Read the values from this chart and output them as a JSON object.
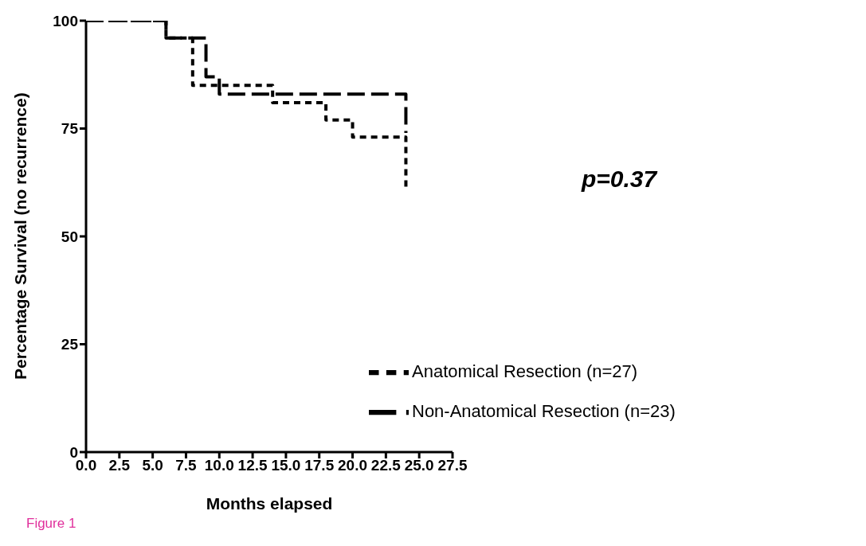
{
  "chart_data": {
    "type": "step",
    "xlabel": "Months elapsed",
    "ylabel": "Percentage Survival (no recurrence)",
    "series": [
      {
        "name": "Anatomical Resection (n=27)",
        "color": "#000000",
        "line_style": "dotted",
        "x": [
          0,
          6,
          8,
          14,
          18,
          20,
          24
        ],
        "values": [
          100,
          96,
          85,
          81,
          77,
          73,
          61
        ]
      },
      {
        "name": "Non-Anatomical Resection (n=23)",
        "color": "#000000",
        "line_style": "dashed",
        "x": [
          0,
          6,
          9,
          10,
          24
        ],
        "values": [
          100,
          96,
          87,
          83,
          74
        ]
      }
    ],
    "xlim": [
      0,
      27.5
    ],
    "xticks": [
      {
        "value": 0,
        "label": "0.0"
      },
      {
        "value": 2.5,
        "label": "2.5"
      },
      {
        "value": 5,
        "label": "5.0"
      },
      {
        "value": 7.5,
        "label": "7.5"
      },
      {
        "value": 10,
        "label": "10.0"
      },
      {
        "value": 12.5,
        "label": "12.5"
      },
      {
        "value": 15,
        "label": "15.0"
      },
      {
        "value": 17.5,
        "label": "17.5"
      },
      {
        "value": 20,
        "label": "20.0"
      },
      {
        "value": 22.5,
        "label": "22.5"
      },
      {
        "value": 25,
        "label": "25.0"
      },
      {
        "value": 27.5,
        "label": "27.5"
      }
    ],
    "ylim": [
      0,
      100
    ],
    "yticks": [
      0,
      25,
      50,
      75,
      100
    ],
    "annotations": [
      "p=0.37",
      "Figure 1"
    ],
    "legend": "bottom right",
    "marker": "none",
    "grid": false
  }
}
